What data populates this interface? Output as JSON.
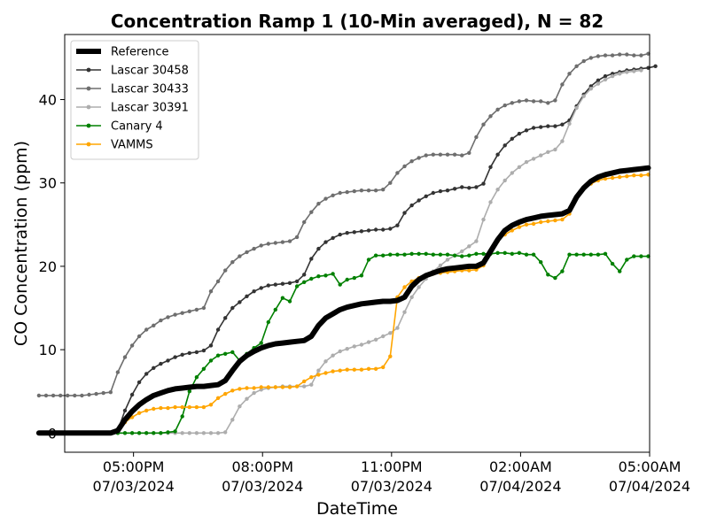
{
  "chart_data": {
    "type": "line",
    "title": "Concentration Ramp 1 (10-Min averaged), N = 82",
    "xlabel": "DateTime",
    "ylabel": "CO Concentration (ppm)",
    "xlim_hours": [
      -1.6,
      12.0
    ],
    "ylim": [
      -2.3,
      47.8
    ],
    "x_ticks": [
      {
        "hour": 0,
        "time": "05:00PM",
        "date": "07/03/2024"
      },
      {
        "hour": 3,
        "time": "08:00PM",
        "date": "07/03/2024"
      },
      {
        "hour": 6,
        "time": "11:00PM",
        "date": "07/03/2024"
      },
      {
        "hour": 9,
        "time": "02:00AM",
        "date": "07/04/2024"
      },
      {
        "hour": 12,
        "time": "05:00AM",
        "date": "07/04/2024"
      }
    ],
    "y_ticks": [
      0,
      10,
      20,
      30,
      40
    ],
    "legend_position": "upper-left",
    "x_start_hour": -2.2,
    "x_step_hours": 0.1667,
    "series": [
      {
        "name": "Reference",
        "color": "#000000",
        "style": "thick",
        "values": [
          0,
          0,
          0,
          0,
          0,
          0,
          0,
          0,
          0,
          0,
          0,
          0.3,
          1.6,
          2.6,
          3.4,
          4.0,
          4.5,
          4.8,
          5.1,
          5.3,
          5.4,
          5.5,
          5.6,
          5.6,
          5.7,
          5.8,
          6.3,
          7.5,
          8.6,
          9.3,
          9.8,
          10.2,
          10.5,
          10.7,
          10.8,
          10.9,
          11.0,
          11.1,
          11.6,
          12.9,
          13.8,
          14.3,
          14.8,
          15.1,
          15.3,
          15.5,
          15.6,
          15.7,
          15.8,
          15.8,
          15.9,
          16.3,
          17.6,
          18.4,
          18.9,
          19.2,
          19.5,
          19.7,
          19.8,
          19.9,
          20.0,
          20.0,
          20.4,
          21.8,
          23.2,
          24.3,
          24.9,
          25.3,
          25.6,
          25.8,
          26.0,
          26.1,
          26.2,
          26.3,
          26.7,
          28.3,
          29.4,
          30.2,
          30.7,
          31.0,
          31.2,
          31.4,
          31.5,
          31.6,
          31.7,
          31.8
        ]
      },
      {
        "name": "Lascar 30458",
        "color": "#333333",
        "style": "dots",
        "values": [
          0,
          0,
          0,
          0,
          0,
          0,
          0,
          0,
          0,
          0,
          0,
          0.3,
          2.7,
          4.6,
          6.1,
          7.1,
          7.8,
          8.3,
          8.7,
          9.1,
          9.4,
          9.6,
          9.7,
          9.9,
          10.5,
          12.4,
          13.8,
          15.0,
          15.7,
          16.4,
          17.0,
          17.4,
          17.7,
          17.8,
          17.9,
          18.0,
          18.2,
          19.0,
          20.9,
          22.1,
          22.9,
          23.4,
          23.8,
          24.0,
          24.1,
          24.2,
          24.3,
          24.4,
          24.4,
          24.5,
          24.9,
          26.4,
          27.3,
          27.9,
          28.4,
          28.8,
          29.0,
          29.1,
          29.3,
          29.5,
          29.4,
          29.5,
          29.9,
          31.9,
          33.4,
          34.5,
          35.3,
          35.9,
          36.3,
          36.6,
          36.7,
          36.8,
          36.8,
          37.0,
          37.5,
          39.2,
          40.6,
          41.6,
          42.3,
          42.8,
          43.1,
          43.3,
          43.5,
          43.6,
          43.7,
          43.8,
          44.0
        ]
      },
      {
        "name": "Lascar 30433",
        "color": "#6e6e6e",
        "style": "dots",
        "values": [
          4.5,
          4.5,
          4.5,
          4.5,
          4.5,
          4.5,
          4.5,
          4.6,
          4.7,
          4.8,
          4.9,
          7.3,
          9.1,
          10.5,
          11.6,
          12.4,
          12.9,
          13.5,
          13.9,
          14.2,
          14.4,
          14.6,
          14.8,
          15.0,
          17.0,
          18.2,
          19.5,
          20.5,
          21.2,
          21.7,
          22.1,
          22.5,
          22.7,
          22.8,
          22.9,
          23.0,
          23.5,
          25.3,
          26.5,
          27.5,
          28.1,
          28.5,
          28.8,
          28.9,
          29.0,
          29.1,
          29.1,
          29.1,
          29.2,
          30.0,
          31.2,
          32.0,
          32.6,
          33.0,
          33.3,
          33.4,
          33.4,
          33.4,
          33.4,
          33.3,
          33.6,
          35.5,
          37.0,
          38.0,
          38.8,
          39.3,
          39.6,
          39.8,
          39.9,
          39.8,
          39.8,
          39.6,
          39.9,
          41.8,
          43.1,
          44.0,
          44.6,
          45.0,
          45.2,
          45.3,
          45.3,
          45.4,
          45.4,
          45.3,
          45.3,
          45.5
        ]
      },
      {
        "name": "Lascar 30391",
        "color": "#adadad",
        "style": "dots",
        "values": [
          0,
          0,
          0,
          0,
          0,
          0,
          0,
          0,
          0,
          0,
          0,
          0,
          0,
          0,
          0,
          0,
          0,
          0,
          0,
          0,
          0,
          0,
          0,
          0,
          0,
          0,
          0.1,
          1.6,
          3.2,
          4.1,
          4.8,
          5.2,
          5.4,
          5.5,
          5.6,
          5.6,
          5.6,
          5.6,
          5.8,
          7.5,
          8.6,
          9.3,
          9.8,
          10.1,
          10.4,
          10.6,
          10.9,
          11.2,
          11.6,
          12.0,
          12.6,
          14.5,
          16.3,
          17.5,
          18.5,
          19.4,
          20.1,
          20.8,
          21.3,
          21.8,
          22.4,
          23.0,
          25.6,
          27.7,
          29.2,
          30.3,
          31.2,
          31.9,
          32.5,
          32.9,
          33.3,
          33.7,
          34.0,
          35.0,
          37.1,
          39.0,
          40.4,
          41.3,
          41.9,
          42.4,
          42.8,
          43.1,
          43.3,
          43.4,
          43.5
        ]
      },
      {
        "name": "Canary 4",
        "color": "#008000",
        "style": "dots",
        "values": [
          0,
          0,
          0,
          0,
          0,
          0,
          0,
          0,
          0,
          0,
          0,
          0,
          0,
          0,
          0,
          0,
          0,
          0,
          0.1,
          0.2,
          2.0,
          5.0,
          6.7,
          7.7,
          8.7,
          9.3,
          9.5,
          9.7,
          8.7,
          9.5,
          10.2,
          10.8,
          13.3,
          14.8,
          16.2,
          15.8,
          17.6,
          18.1,
          18.5,
          18.8,
          18.9,
          19.1,
          17.8,
          18.4,
          18.6,
          18.9,
          20.8,
          21.3,
          21.3,
          21.4,
          21.4,
          21.4,
          21.5,
          21.5,
          21.5,
          21.4,
          21.4,
          21.4,
          21.3,
          21.2,
          21.3,
          21.5,
          21.5,
          21.5,
          21.6,
          21.6,
          21.5,
          21.6,
          21.4,
          21.4,
          20.5,
          19.0,
          18.6,
          19.4,
          21.4,
          21.4,
          21.4,
          21.4,
          21.4,
          21.5,
          20.3,
          19.4,
          20.8,
          21.2,
          21.2,
          21.2
        ]
      },
      {
        "name": "VAMMS",
        "color": "#ffa500",
        "style": "dots",
        "values": [
          0,
          0,
          0,
          0,
          0,
          0,
          0,
          0,
          0,
          0,
          0,
          0.3,
          1.3,
          1.9,
          2.4,
          2.7,
          2.9,
          3.0,
          3.0,
          3.1,
          3.1,
          3.1,
          3.1,
          3.1,
          3.4,
          4.2,
          4.7,
          5.1,
          5.3,
          5.4,
          5.4,
          5.5,
          5.5,
          5.5,
          5.5,
          5.5,
          5.6,
          6.2,
          6.7,
          7.0,
          7.2,
          7.4,
          7.5,
          7.6,
          7.6,
          7.6,
          7.7,
          7.7,
          7.9,
          9.2,
          16.3,
          17.5,
          18.2,
          18.6,
          18.9,
          19.1,
          19.2,
          19.3,
          19.4,
          19.5,
          19.5,
          19.6,
          20.1,
          21.8,
          23.0,
          23.8,
          24.3,
          24.7,
          25.0,
          25.1,
          25.3,
          25.4,
          25.5,
          25.6,
          26.3,
          28.2,
          29.3,
          29.9,
          30.3,
          30.5,
          30.6,
          30.7,
          30.8,
          30.9,
          30.9,
          31.0
        ]
      }
    ]
  }
}
